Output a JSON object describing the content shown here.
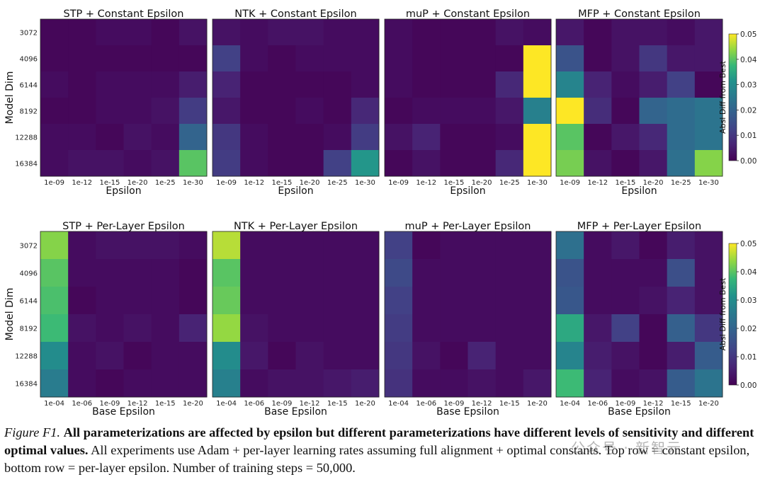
{
  "chart_data": {
    "type": "heatmap",
    "colorbar": {
      "label": "Absl Diff from Best",
      "min": 0.0,
      "max": 0.05,
      "ticks": [
        "0.00",
        "0.01",
        "0.02",
        "0.03",
        "0.04",
        "0.05"
      ]
    },
    "ylabel": "Model Dim",
    "rows": [
      "3072",
      "4096",
      "6144",
      "8192",
      "12288",
      "16384"
    ],
    "panels": [
      {
        "title": "STP + Constant Epsilon",
        "xlabel": "Epsilon",
        "columns": [
          "1e-09",
          "1e-12",
          "1e-15",
          "1e-20",
          "1e-25",
          "1e-30"
        ],
        "values": [
          [
            0.001,
            0.001,
            0.002,
            0.002,
            0.001,
            0.003
          ],
          [
            0.001,
            0.001,
            0.001,
            0.001,
            0.001,
            0.001
          ],
          [
            0.002,
            0.001,
            0.002,
            0.002,
            0.002,
            0.005
          ],
          [
            0.001,
            0.001,
            0.002,
            0.002,
            0.003,
            0.011
          ],
          [
            0.002,
            0.002,
            0.001,
            0.003,
            0.002,
            0.02
          ],
          [
            0.002,
            0.003,
            0.003,
            0.002,
            0.003,
            0.04
          ]
        ]
      },
      {
        "title": "NTK + Constant Epsilon",
        "xlabel": "Epsilon",
        "columns": [
          "1e-09",
          "1e-12",
          "1e-15",
          "1e-20",
          "1e-25",
          "1e-30"
        ],
        "values": [
          [
            0.003,
            0.002,
            0.003,
            0.003,
            0.002,
            0.002
          ],
          [
            0.012,
            0.002,
            0.001,
            0.002,
            0.002,
            0.002
          ],
          [
            0.006,
            0.001,
            0.001,
            0.001,
            0.001,
            0.002
          ],
          [
            0.004,
            0.001,
            0.001,
            0.002,
            0.001,
            0.007
          ],
          [
            0.01,
            0.002,
            0.001,
            0.001,
            0.002,
            0.011
          ],
          [
            0.011,
            0.002,
            0.001,
            0.001,
            0.012,
            0.032
          ]
        ]
      },
      {
        "title": "muP + Constant Epsilon",
        "xlabel": "Epsilon",
        "columns": [
          "1e-09",
          "1e-12",
          "1e-15",
          "1e-20",
          "1e-25",
          "1e-30"
        ],
        "values": [
          [
            0.002,
            0.001,
            0.001,
            0.001,
            0.003,
            0.002
          ],
          [
            0.002,
            0.001,
            0.001,
            0.001,
            0.001,
            0.05
          ],
          [
            0.002,
            0.001,
            0.001,
            0.001,
            0.007,
            0.05
          ],
          [
            0.001,
            0.002,
            0.002,
            0.002,
            0.004,
            0.027
          ],
          [
            0.003,
            0.006,
            0.001,
            0.001,
            0.002,
            0.05
          ],
          [
            0.001,
            0.003,
            0.001,
            0.001,
            0.007,
            0.05
          ]
        ]
      },
      {
        "title": "MFP + Constant Epsilon",
        "xlabel": "Epsilon",
        "columns": [
          "1e-09",
          "1e-12",
          "1e-15",
          "1e-20",
          "1e-25",
          "1e-30"
        ],
        "values": [
          [
            0.004,
            0.001,
            0.003,
            0.003,
            0.002,
            0.004
          ],
          [
            0.016,
            0.001,
            0.003,
            0.01,
            0.004,
            0.004
          ],
          [
            0.028,
            0.006,
            0.002,
            0.005,
            0.012,
            0.001
          ],
          [
            0.05,
            0.008,
            0.001,
            0.02,
            0.022,
            0.024
          ],
          [
            0.04,
            0.001,
            0.004,
            0.007,
            0.022,
            0.024
          ],
          [
            0.042,
            0.003,
            0.001,
            0.004,
            0.023,
            0.043
          ]
        ]
      },
      {
        "title": "STP + Per-Layer Epsilon",
        "xlabel": "Base Epsilon",
        "columns": [
          "1e-04",
          "1e-06",
          "1e-09",
          "1e-12",
          "1e-15",
          "1e-20"
        ],
        "values": [
          [
            0.043,
            0.002,
            0.003,
            0.003,
            0.003,
            0.002
          ],
          [
            0.04,
            0.002,
            0.002,
            0.002,
            0.002,
            0.001
          ],
          [
            0.039,
            0.001,
            0.002,
            0.002,
            0.002,
            0.001
          ],
          [
            0.038,
            0.003,
            0.002,
            0.003,
            0.002,
            0.006
          ],
          [
            0.03,
            0.002,
            0.003,
            0.001,
            0.002,
            0.002
          ],
          [
            0.026,
            0.002,
            0.001,
            0.002,
            0.002,
            0.002
          ]
        ]
      },
      {
        "title": "NTK + Per-Layer Epsilon",
        "xlabel": "Base Epsilon",
        "columns": [
          "1e-04",
          "1e-06",
          "1e-09",
          "1e-12",
          "1e-15",
          "1e-20"
        ],
        "values": [
          [
            0.046,
            0.002,
            0.002,
            0.002,
            0.002,
            0.002
          ],
          [
            0.04,
            0.002,
            0.002,
            0.002,
            0.002,
            0.002
          ],
          [
            0.041,
            0.002,
            0.002,
            0.002,
            0.002,
            0.002
          ],
          [
            0.044,
            0.003,
            0.002,
            0.002,
            0.002,
            0.002
          ],
          [
            0.03,
            0.004,
            0.001,
            0.003,
            0.002,
            0.002
          ],
          [
            0.027,
            0.002,
            0.003,
            0.003,
            0.004,
            0.005
          ]
        ]
      },
      {
        "title": "muP + Per-Layer Epsilon",
        "xlabel": "Base Epsilon",
        "columns": [
          "1e-04",
          "1e-06",
          "1e-09",
          "1e-12",
          "1e-15",
          "1e-20"
        ],
        "values": [
          [
            0.012,
            0.001,
            0.002,
            0.002,
            0.002,
            0.002
          ],
          [
            0.014,
            0.002,
            0.002,
            0.002,
            0.002,
            0.002
          ],
          [
            0.012,
            0.002,
            0.002,
            0.002,
            0.002,
            0.002
          ],
          [
            0.011,
            0.002,
            0.002,
            0.002,
            0.002,
            0.002
          ],
          [
            0.01,
            0.003,
            0.001,
            0.006,
            0.002,
            0.002
          ],
          [
            0.009,
            0.002,
            0.002,
            0.003,
            0.002,
            0.004
          ]
        ]
      },
      {
        "title": "MFP + Per-Layer Epsilon",
        "xlabel": "Base Epsilon",
        "columns": [
          "1e-04",
          "1e-06",
          "1e-09",
          "1e-12",
          "1e-15",
          "1e-20"
        ],
        "values": [
          [
            0.023,
            0.002,
            0.004,
            0.001,
            0.005,
            0.003
          ],
          [
            0.016,
            0.002,
            0.002,
            0.002,
            0.015,
            0.003
          ],
          [
            0.017,
            0.002,
            0.002,
            0.003,
            0.006,
            0.003
          ],
          [
            0.035,
            0.004,
            0.012,
            0.001,
            0.019,
            0.01
          ],
          [
            0.028,
            0.005,
            0.003,
            0.001,
            0.005,
            0.018
          ],
          [
            0.038,
            0.006,
            0.002,
            0.003,
            0.018,
            0.024
          ]
        ]
      }
    ]
  },
  "caption": {
    "label": "Figure F1.",
    "bold": "All parameterizations are affected by epsilon but different parameterizations have different levels of sensitivity and different optimal values.",
    "rest": "All experiments use Adam + per-layer learning rates assuming full alignment + optimal constants. Top row = constant epsilon, bottom row = per-layer epsilon. Number of training steps = 50,000."
  },
  "watermark": "公众号 · 新智元"
}
